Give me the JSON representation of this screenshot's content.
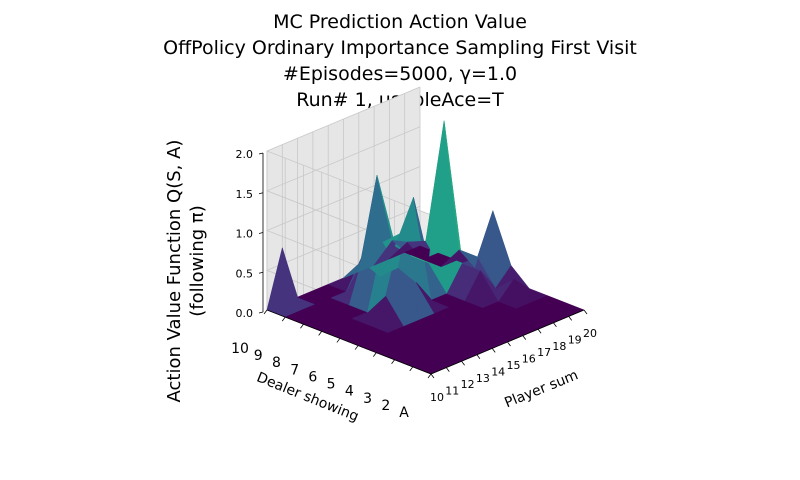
{
  "chart_data": {
    "type": "surface3d",
    "title": [
      "MC Prediction Action Value",
      "OffPolicy Ordinary Importance Sampling First Visit",
      "#Episodes=5000, γ=1.0",
      "Run# 1, usableAce=T"
    ],
    "xlabel": "Player sum",
    "ylabel": "Dealer showing",
    "zlabel_line1": "Action Value Function Q(S, A)",
    "zlabel_line2": "(following π)",
    "x_ticks": [
      "10",
      "11",
      "12",
      "13",
      "14",
      "15",
      "16",
      "17",
      "18",
      "19",
      "20"
    ],
    "y_ticks": [
      "A",
      "2",
      "3",
      "4",
      "5",
      "6",
      "7",
      "8",
      "9",
      "10"
    ],
    "z_ticks": [
      "0.0",
      "0.5",
      "1.0",
      "1.5",
      "2.0"
    ],
    "zlim": [
      0,
      2.0
    ],
    "colormap": "viridis",
    "z": [
      [
        0,
        0,
        0,
        0,
        0,
        0,
        0,
        0,
        0,
        0,
        0
      ],
      [
        0,
        0,
        0,
        0,
        0,
        0,
        0,
        0,
        0,
        0,
        0
      ],
      [
        0,
        0,
        0,
        0,
        0,
        0,
        0,
        0,
        0,
        0,
        0
      ],
      [
        0,
        0,
        0,
        0,
        0,
        0,
        0,
        0,
        0,
        0.2,
        0
      ],
      [
        0,
        0,
        0,
        0,
        0,
        0,
        0,
        0,
        0.3,
        0,
        0.2
      ],
      [
        0,
        0,
        0,
        0.3,
        1.0,
        0.3,
        0,
        0,
        0.3,
        0.3,
        0.8
      ],
      [
        0,
        0,
        0,
        0,
        0.8,
        0.4,
        1.2,
        0.3,
        2.0,
        0.3,
        0
      ],
      [
        0,
        0,
        0,
        0,
        0.6,
        0.2,
        0.5,
        0.3,
        0.4,
        0,
        0
      ],
      [
        0,
        0,
        0,
        0,
        0,
        0.3,
        1.3,
        0.4,
        0.3,
        0,
        0
      ],
      [
        0,
        0.7,
        0,
        0,
        0,
        0,
        0,
        0,
        0,
        0,
        0
      ]
    ]
  }
}
